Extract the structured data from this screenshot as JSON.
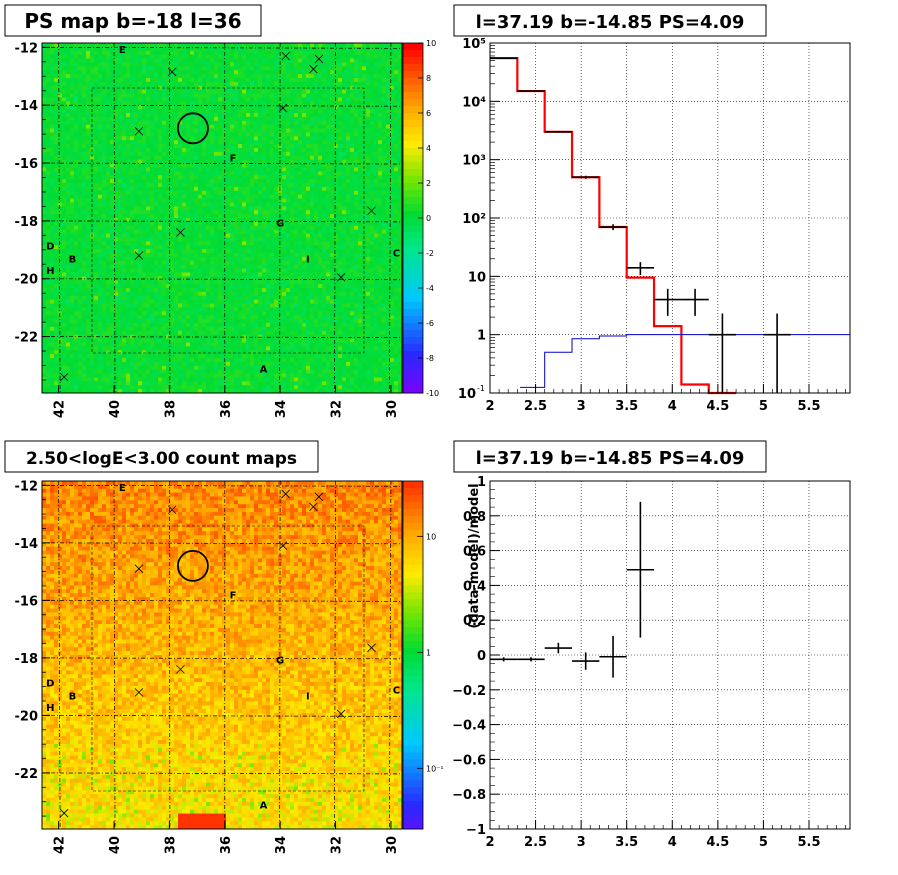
{
  "chart_data": [
    {
      "type": "heatmap",
      "title": "PS map b=-18 l=36",
      "x_ticks": [
        "42",
        "40",
        "38",
        "36",
        "34",
        "32",
        "30"
      ],
      "x_tick_values": [
        42,
        40,
        38,
        36,
        34,
        32,
        30
      ],
      "y_ticks": [
        "-12",
        "-14",
        "-16",
        "-18",
        "-20",
        "-22"
      ],
      "y_tick_values": [
        -12,
        -14,
        -16,
        -18,
        -20,
        -22
      ],
      "xlim": [
        42.6,
        29.6
      ],
      "ylim": [
        -23.95,
        -11.85
      ],
      "colorbar_ticks": [
        "10",
        "8",
        "6",
        "4",
        "2",
        "0",
        "-2",
        "-4",
        "-6",
        "-8",
        "-10"
      ],
      "colorbar_range": [
        -10,
        10
      ],
      "dominant_value": 0.3,
      "labels": [
        {
          "text": "E",
          "l": 39.7,
          "b": -12.05
        },
        {
          "text": "F",
          "l": 35.7,
          "b": -15.8
        },
        {
          "text": "G",
          "l": 34.0,
          "b": -18.05
        },
        {
          "text": "D",
          "l": 42.3,
          "b": -18.85
        },
        {
          "text": "B",
          "l": 41.5,
          "b": -19.3
        },
        {
          "text": "H",
          "l": 42.3,
          "b": -19.7
        },
        {
          "text": "I",
          "l": 33.0,
          "b": -19.3
        },
        {
          "text": "C",
          "l": 29.8,
          "b": -19.1
        },
        {
          "text": "A",
          "l": 34.6,
          "b": -23.1
        }
      ],
      "crosses": [
        [
          37.9,
          -12.85
        ],
        [
          33.8,
          -12.3
        ],
        [
          32.6,
          -12.4
        ],
        [
          32.8,
          -12.75
        ],
        [
          39.1,
          -14.9
        ],
        [
          33.9,
          -14.1
        ],
        [
          37.6,
          -18.4
        ],
        [
          39.1,
          -19.2
        ],
        [
          31.8,
          -19.95
        ],
        [
          30.7,
          -17.65
        ],
        [
          41.8,
          -23.4
        ]
      ],
      "circle": {
        "l": 37.15,
        "b": -14.8
      }
    },
    {
      "type": "line",
      "title": "l=37.19 b=-14.85 PS=4.09",
      "x_ticks": [
        "2",
        "2.5",
        "3",
        "3.5",
        "4",
        "4.5",
        "5",
        "5.5"
      ],
      "x_tick_values": [
        2,
        2.5,
        3,
        3.5,
        4,
        4.5,
        5,
        5.5
      ],
      "y_scale": "log",
      "y_ticks": [
        "1",
        "10",
        "10²",
        "10³",
        "10⁴",
        "10⁵"
      ],
      "y_tick_values": [
        1,
        10,
        100,
        1000,
        10000,
        100000
      ],
      "y_extra_tick": "10",
      "y_extra_tick_exp": "-1",
      "xlim": [
        2,
        5.95
      ],
      "ylim": [
        0.1,
        100000
      ],
      "grid": true,
      "series": [
        {
          "style": "histogram",
          "color": "#ff0000",
          "edges": [
            2,
            2.3,
            2.6,
            2.9,
            3.2,
            3.5,
            3.8,
            4.1,
            4.4,
            4.7
          ],
          "values": [
            55000,
            15000,
            3000,
            500,
            70,
            9.5,
            1.4,
            0.14,
            0.1
          ]
        },
        {
          "style": "histogram",
          "color": "#0000cc",
          "edges": [
            2.33,
            2.6,
            2.9,
            3.2,
            3.5,
            3.8,
            4.1,
            4.4,
            4.7,
            5.0,
            5.3,
            5.6,
            5.95
          ],
          "values": [
            0.125,
            0.5,
            0.85,
            0.95,
            1.0,
            1.0,
            1.0,
            1.0,
            1.0,
            1.0,
            1.0,
            1.0
          ]
        },
        {
          "style": "errorbars",
          "color": "#000000",
          "points": [
            {
              "x": 2.15,
              "xerr": 0.15,
              "y": 55000,
              "ylo": 54500,
              "yhi": 55500
            },
            {
              "x": 2.45,
              "xerr": 0.15,
              "y": 15000,
              "ylo": 14800,
              "yhi": 15200
            },
            {
              "x": 2.75,
              "xerr": 0.15,
              "y": 3000,
              "ylo": 2900,
              "yhi": 3100
            },
            {
              "x": 3.05,
              "xerr": 0.15,
              "y": 500,
              "ylo": 470,
              "yhi": 530
            },
            {
              "x": 3.35,
              "xerr": 0.15,
              "y": 70,
              "ylo": 62,
              "yhi": 78
            },
            {
              "x": 3.65,
              "xerr": 0.15,
              "y": 14,
              "ylo": 10.5,
              "yhi": 17.5
            },
            {
              "x": 3.95,
              "xerr": 0.15,
              "y": 4,
              "ylo": 2.1,
              "yhi": 6.1
            },
            {
              "x": 4.25,
              "xerr": 0.15,
              "y": 4,
              "ylo": 2.1,
              "yhi": 6.1
            },
            {
              "x": 4.55,
              "xerr": 0.15,
              "y": 1,
              "ylo": 0.1,
              "yhi": 2.3
            },
            {
              "x": 5.15,
              "xerr": 0.15,
              "y": 1,
              "ylo": 0.1,
              "yhi": 2.3
            }
          ]
        }
      ]
    },
    {
      "type": "heatmap",
      "title": "2.50<logE<3.00 count maps",
      "x_ticks": [
        "42",
        "40",
        "38",
        "36",
        "34",
        "32",
        "30"
      ],
      "x_tick_values": [
        42,
        40,
        38,
        36,
        34,
        32,
        30
      ],
      "y_ticks": [
        "-12",
        "-14",
        "-16",
        "-18",
        "-20",
        "-22"
      ],
      "y_tick_values": [
        -12,
        -14,
        -16,
        -18,
        -20,
        -22
      ],
      "xlim": [
        42.6,
        29.6
      ],
      "ylim": [
        -23.95,
        -11.85
      ],
      "colorbar_scale": "log",
      "colorbar_ticks": [
        "10",
        "1",
        "10⁻¹"
      ],
      "colorbar_tick_values": [
        10,
        1,
        0.1
      ],
      "labels": [
        {
          "text": "E",
          "l": 39.7,
          "b": -12.05
        },
        {
          "text": "F",
          "l": 35.7,
          "b": -15.8
        },
        {
          "text": "G",
          "l": 34.0,
          "b": -18.05
        },
        {
          "text": "D",
          "l": 42.3,
          "b": -18.85
        },
        {
          "text": "B",
          "l": 41.5,
          "b": -19.3
        },
        {
          "text": "H",
          "l": 42.3,
          "b": -19.7
        },
        {
          "text": "I",
          "l": 33.0,
          "b": -19.3
        },
        {
          "text": "C",
          "l": 29.8,
          "b": -19.1
        },
        {
          "text": "A",
          "l": 34.6,
          "b": -23.1
        }
      ],
      "crosses": [
        [
          37.9,
          -12.85
        ],
        [
          33.8,
          -12.3
        ],
        [
          32.6,
          -12.4
        ],
        [
          32.8,
          -12.75
        ],
        [
          39.1,
          -14.9
        ],
        [
          33.9,
          -14.1
        ],
        [
          37.6,
          -18.4
        ],
        [
          39.1,
          -19.2
        ],
        [
          31.8,
          -19.95
        ],
        [
          30.7,
          -17.65
        ],
        [
          41.8,
          -23.4
        ]
      ],
      "circle": {
        "l": 37.15,
        "b": -14.8
      }
    },
    {
      "type": "scatter",
      "title": "l=37.19 b=-14.85 PS=4.09",
      "ylabel": "(data-model)/model",
      "x_ticks": [
        "2",
        "2.5",
        "3",
        "3.5",
        "4",
        "4.5",
        "5",
        "5.5"
      ],
      "x_tick_values": [
        2,
        2.5,
        3,
        3.5,
        4,
        4.5,
        5,
        5.5
      ],
      "y_ticks": [
        "1",
        "0.8",
        "0.6",
        "0.4",
        "0.2",
        "0",
        "−0.2",
        "−0.4",
        "−0.6",
        "−0.8",
        "−1"
      ],
      "y_tick_values": [
        1,
        0.8,
        0.6,
        0.4,
        0.2,
        0,
        -0.2,
        -0.4,
        -0.6,
        -0.8,
        -1
      ],
      "xlim": [
        2,
        5.95
      ],
      "ylim": [
        -1,
        1
      ],
      "grid": true,
      "points": [
        {
          "x": 2.15,
          "xerr": 0.15,
          "y": -0.025,
          "yerr": 0.012
        },
        {
          "x": 2.45,
          "xerr": 0.15,
          "y": -0.025,
          "yerr": 0.012
        },
        {
          "x": 2.75,
          "xerr": 0.15,
          "y": 0.04,
          "yerr": 0.03
        },
        {
          "x": 3.05,
          "xerr": 0.15,
          "y": -0.035,
          "yerr": 0.05
        },
        {
          "x": 3.35,
          "xerr": 0.15,
          "y": -0.01,
          "yerr": 0.12
        },
        {
          "x": 3.65,
          "xerr": 0.15,
          "y": 0.49,
          "yerr": 0.39
        }
      ]
    }
  ]
}
